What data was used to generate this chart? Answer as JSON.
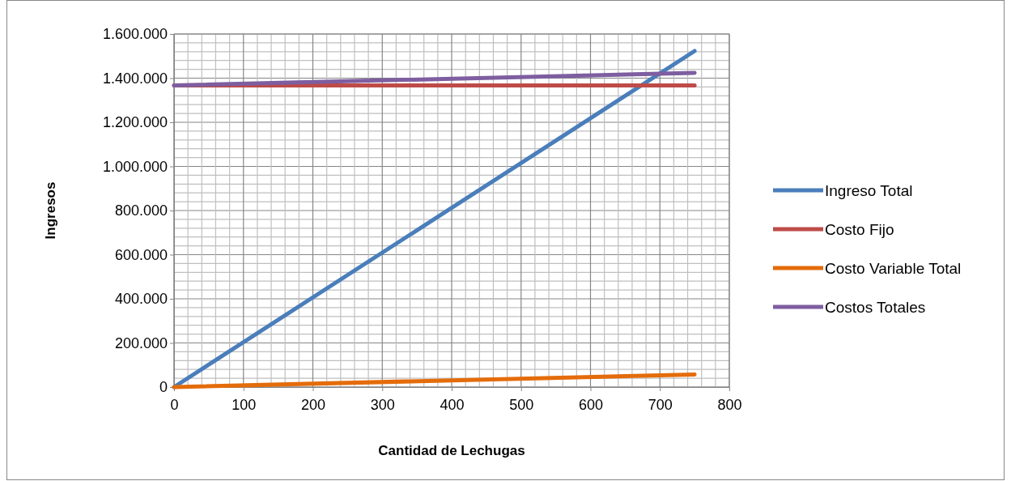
{
  "chart_data": {
    "type": "line",
    "xlabel": "Cantidad de Lechugas",
    "ylabel": "Ingresos",
    "x": [
      0,
      750
    ],
    "series": [
      {
        "name": "Ingreso Total",
        "color": "#4a7ebb",
        "values": [
          0,
          1523000
        ]
      },
      {
        "name": "Costo Fijo",
        "color": "#be4b48",
        "values": [
          1367000,
          1367000
        ]
      },
      {
        "name": "Costo Variable Total",
        "color": "#e46c0a",
        "values": [
          0,
          57000
        ]
      },
      {
        "name": "Costos Totales",
        "color": "#7e5ea0",
        "values": [
          1367000,
          1424000
        ]
      }
    ],
    "xlim": [
      0,
      800
    ],
    "xticks": [
      0,
      {
        "value": 20,
        "label": null
      },
      {
        "value": 40,
        "label": null
      },
      {
        "value": 60,
        "label": null
      },
      {
        "value": 80,
        "label": null
      },
      100,
      {
        "value": 120,
        "label": null
      },
      {
        "value": 140,
        "label": null
      },
      {
        "value": 160,
        "label": null
      },
      {
        "value": 180,
        "label": null
      },
      200,
      {
        "value": 220,
        "label": null
      },
      {
        "value": 240,
        "label": null
      },
      {
        "value": 260,
        "label": null
      },
      {
        "value": 280,
        "label": null
      },
      300,
      {
        "value": 320,
        "label": null
      },
      {
        "value": 340,
        "label": null
      },
      {
        "value": 360,
        "label": null
      },
      {
        "value": 380,
        "label": null
      },
      400,
      {
        "value": 420,
        "label": null
      },
      {
        "value": 440,
        "label": null
      },
      {
        "value": 460,
        "label": null
      },
      {
        "value": 480,
        "label": null
      },
      500,
      {
        "value": 520,
        "label": null
      },
      {
        "value": 540,
        "label": null
      },
      {
        "value": 560,
        "label": null
      },
      {
        "value": 580,
        "label": null
      },
      600,
      {
        "value": 620,
        "label": null
      },
      {
        "value": 640,
        "label": null
      },
      {
        "value": 660,
        "label": null
      },
      {
        "value": 680,
        "label": null
      },
      700,
      {
        "value": 720,
        "label": null
      },
      {
        "value": 740,
        "label": null
      },
      {
        "value": 760,
        "label": null
      },
      {
        "value": 780,
        "label": null
      },
      800
    ],
    "ylim": [
      0,
      1600000
    ],
    "yticks": [
      0,
      {
        "value": 40000,
        "label": null
      },
      {
        "value": 80000,
        "label": null
      },
      {
        "value": 120000,
        "label": null
      },
      {
        "value": 160000,
        "label": null
      },
      {
        "value": 200000,
        "label": "200.000"
      },
      {
        "value": 240000,
        "label": null
      },
      {
        "value": 280000,
        "label": null
      },
      {
        "value": 320000,
        "label": null
      },
      {
        "value": 360000,
        "label": null
      },
      {
        "value": 400000,
        "label": "400.000"
      },
      {
        "value": 440000,
        "label": null
      },
      {
        "value": 480000,
        "label": null
      },
      {
        "value": 520000,
        "label": null
      },
      {
        "value": 560000,
        "label": null
      },
      {
        "value": 600000,
        "label": "600.000"
      },
      {
        "value": 640000,
        "label": null
      },
      {
        "value": 680000,
        "label": null
      },
      {
        "value": 720000,
        "label": null
      },
      {
        "value": 760000,
        "label": null
      },
      {
        "value": 800000,
        "label": "800.000"
      },
      {
        "value": 840000,
        "label": null
      },
      {
        "value": 880000,
        "label": null
      },
      {
        "value": 920000,
        "label": null
      },
      {
        "value": 960000,
        "label": null
      },
      {
        "value": 1000000,
        "label": "1.000.000"
      },
      {
        "value": 1040000,
        "label": null
      },
      {
        "value": 1080000,
        "label": null
      },
      {
        "value": 1120000,
        "label": null
      },
      {
        "value": 1160000,
        "label": null
      },
      {
        "value": 1200000,
        "label": "1.200.000"
      },
      {
        "value": 1240000,
        "label": null
      },
      {
        "value": 1280000,
        "label": null
      },
      {
        "value": 1320000,
        "label": null
      },
      {
        "value": 1360000,
        "label": null
      },
      {
        "value": 1400000,
        "label": "1.400.000"
      },
      {
        "value": 1440000,
        "label": null
      },
      {
        "value": 1480000,
        "label": null
      },
      {
        "value": 1520000,
        "label": null
      },
      {
        "value": 1560000,
        "label": null
      },
      {
        "value": 1600000,
        "label": "1.600.000"
      }
    ],
    "grid": true,
    "legend": "right",
    "marker": "none",
    "line_style": "solid"
  }
}
